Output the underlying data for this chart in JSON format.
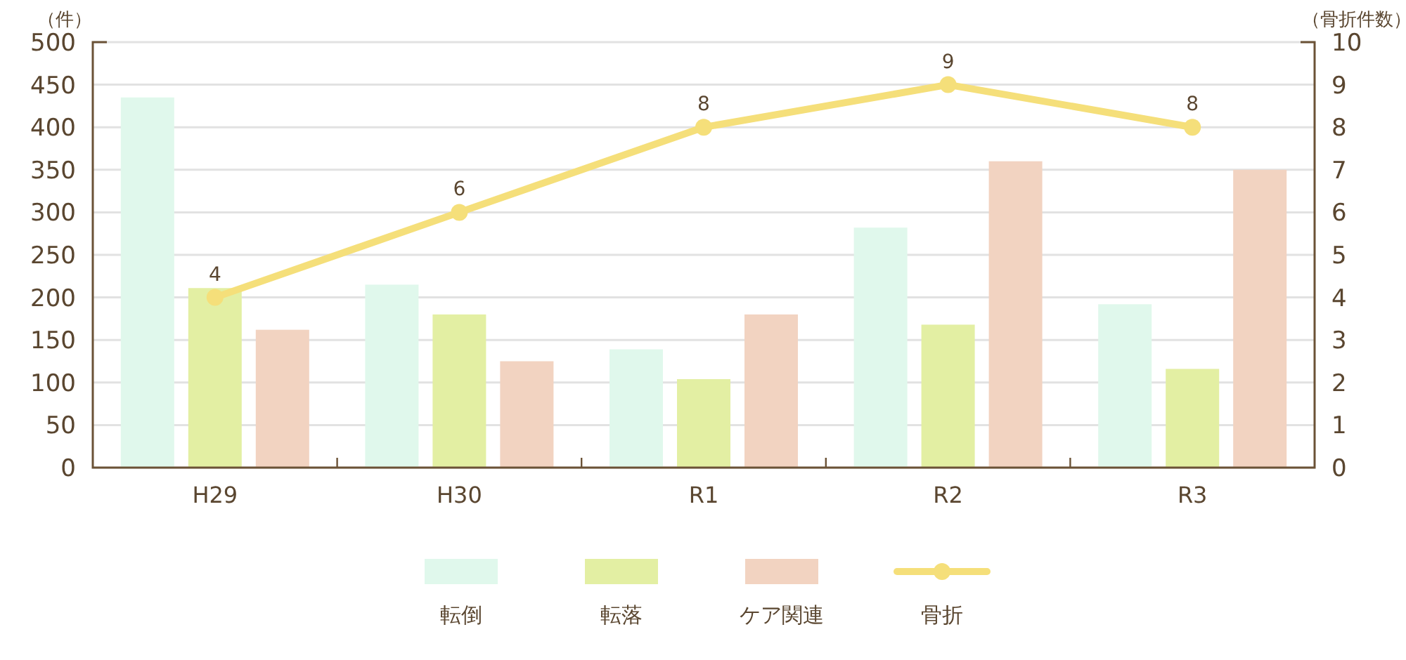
{
  "chart_data": {
    "type": "bar",
    "ylabel": "（件）",
    "y2label": "（骨折件数）",
    "categories": [
      "H29",
      "H30",
      "R1",
      "R2",
      "R3"
    ],
    "series": [
      {
        "name": "転倒",
        "color": "#e0f8ec",
        "values": [
          435,
          215,
          139,
          282,
          192
        ]
      },
      {
        "name": "転落",
        "color": "#e3efa3",
        "values": [
          211,
          180,
          104,
          168,
          116
        ]
      },
      {
        "name": "ケア関連",
        "color": "#f2d3c1",
        "values": [
          162,
          125,
          180,
          360,
          350
        ]
      },
      {
        "name": "骨折",
        "type": "line",
        "axis": "y2",
        "color": "#f5df7a",
        "values": [
          4,
          6,
          8,
          9,
          8
        ],
        "value_labels": [
          "4",
          "6",
          "8",
          "9",
          "8"
        ]
      }
    ],
    "ylim": [
      0,
      500
    ],
    "yticks": [
      0,
      50,
      100,
      150,
      200,
      250,
      300,
      350,
      400,
      450,
      500
    ],
    "y2lim": [
      0,
      10
    ],
    "y2ticks": [
      0,
      1,
      2,
      3,
      4,
      5,
      6,
      7,
      8,
      9,
      10
    ],
    "marker": "circle",
    "legend": "bottom",
    "grid": "y"
  }
}
